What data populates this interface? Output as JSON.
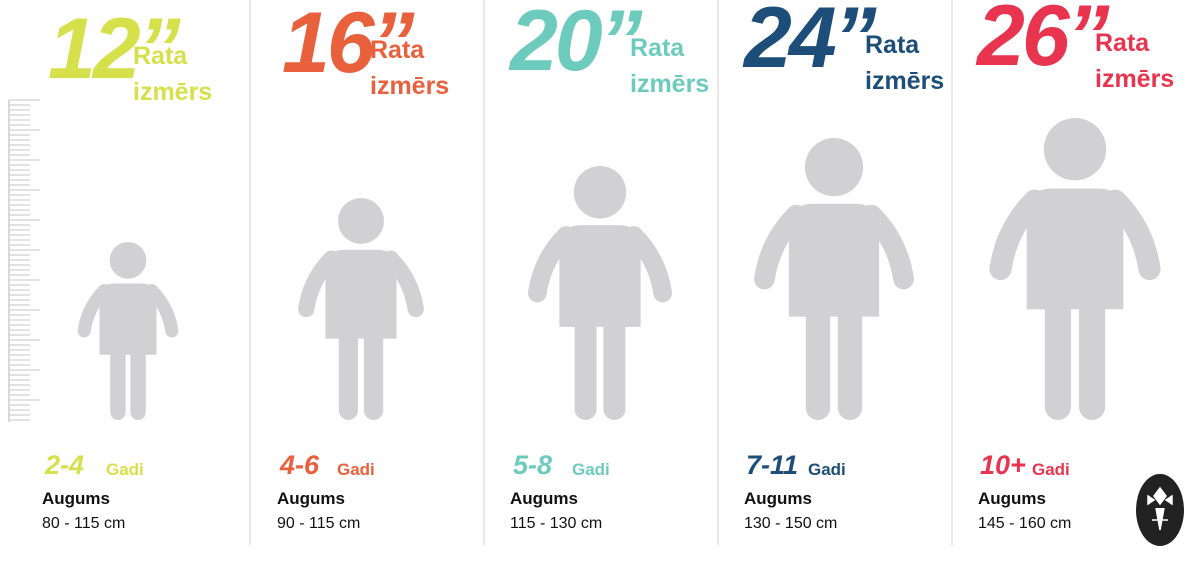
{
  "columns": [
    {
      "size": "12”",
      "label_line1": "Rata",
      "label_line2": "izmērs",
      "age": "2-4",
      "age_unit": "Gadi",
      "height_label": "Augums",
      "height_range": "80 - 115 cm",
      "color": "#d5e04b"
    },
    {
      "size": "16”",
      "label_line1": "Rata",
      "label_line2": "izmērs",
      "age": "4-6",
      "age_unit": "Gadi",
      "height_label": "Augums",
      "height_range": "90 - 115 cm",
      "color": "#e8603c"
    },
    {
      "size": "20”",
      "label_line1": "Rata",
      "label_line2": "izmērs",
      "age": "5-8",
      "age_unit": "Gadi",
      "height_label": "Augums",
      "height_range": "115 - 130 cm",
      "color": "#6dcbbd"
    },
    {
      "size": "24”",
      "label_line1": "Rata",
      "label_line2": "izmērs",
      "age": "7-11",
      "age_unit": "Gadi",
      "height_label": "Augums",
      "height_range": "130 - 150 cm",
      "color": "#1d4e79"
    },
    {
      "size": "26”",
      "label_line1": "Rata",
      "label_line2": "izmērs",
      "age": "10+",
      "age_unit": "Gadi",
      "height_label": "Augums",
      "height_range": "145 - 160 cm",
      "color": "#e8344f"
    }
  ]
}
